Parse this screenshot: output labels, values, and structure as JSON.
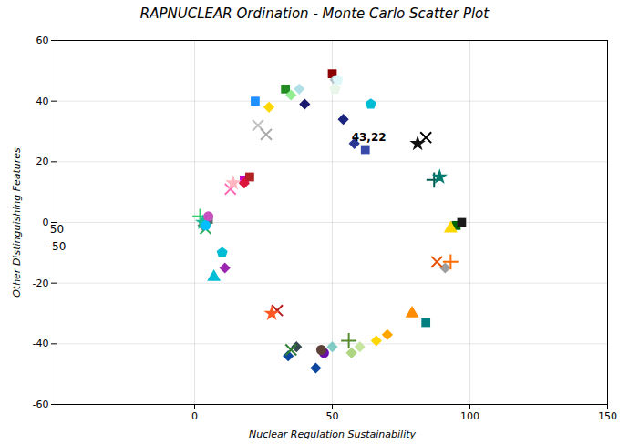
{
  "chart_data": {
    "type": "scatter",
    "title": "RAPNUCLEAR Ordination - Monte Carlo Scatter Plot",
    "xlabel": "Nuclear Regulation Sustainability",
    "ylabel": "Other Distinguishing Features",
    "xlim": [
      -50,
      150
    ],
    "ylim": [
      -60,
      60
    ],
    "xticks": [
      0,
      50,
      100,
      150
    ],
    "yticks": [
      -60,
      -40,
      -20,
      0,
      20,
      40,
      60
    ],
    "grid": true,
    "annotations": [
      {
        "text": "43,22",
        "x": 57,
        "y": 27
      },
      {
        "text": "50",
        "x": -50,
        "y": 0
      },
      {
        "text": "-50",
        "x": -50,
        "y": -3
      }
    ],
    "series": [
      {
        "marker": "square",
        "x": [
          5,
          18,
          20,
          22,
          33,
          50,
          62,
          95,
          97,
          84
        ],
        "values": [
          1,
          14,
          15,
          40,
          44,
          49,
          24,
          -1,
          0,
          -33
        ],
        "colors": [
          "#5a6a6e",
          "#cc00cc",
          "#b22222",
          "#1e90ff",
          "#228b22",
          "#8b0000",
          "#3949ab",
          "#006400",
          "#1a1a1a",
          "#008080"
        ]
      },
      {
        "marker": "diamond",
        "x": [
          3,
          18,
          27,
          35,
          38,
          40,
          51,
          54,
          58,
          91,
          70,
          66,
          60,
          57,
          50,
          44,
          37,
          34,
          11
        ],
        "values": [
          -1,
          13,
          38,
          42,
          44,
          39,
          47,
          34,
          26,
          -15,
          -37,
          -39,
          -41,
          -43,
          -41,
          -48,
          -41,
          -44,
          -15
        ],
        "colors": [
          "#6e8080",
          "#dc143c",
          "#ffd700",
          "#90ee90",
          "#b0e0e6",
          "#191970",
          "#b0bec5",
          "#1a237e",
          "#283593",
          "#9e9e9e",
          "#ffa500",
          "#ffd700",
          "#c6e6a0",
          "#aed581",
          "#80cbc4",
          "#0d47a1",
          "#37474f",
          "#0d47a1",
          "#9c27b0"
        ]
      },
      {
        "marker": "plus",
        "x": [
          2,
          87,
          93,
          56
        ],
        "values": [
          2,
          14,
          -13,
          -39
        ],
        "colors": [
          "#2ecc71",
          "#005a52",
          "#ff6d00",
          "#558b2f"
        ]
      },
      {
        "marker": "times",
        "x": [
          4,
          13,
          23,
          26,
          84,
          88,
          35,
          30
        ],
        "values": [
          -2,
          11,
          32,
          29,
          28,
          -13,
          -42,
          -29
        ],
        "colors": [
          "#27ae60",
          "#ff69b4",
          "#c0c0c0",
          "#a8a8a8",
          "#000000",
          "#e65100",
          "#2e7d32",
          "#b71c1c"
        ]
      },
      {
        "marker": "star",
        "x": [
          3,
          14,
          81,
          89,
          28
        ],
        "values": [
          0,
          13,
          26,
          15,
          -30
        ],
        "colors": [
          "#1abc9c",
          "#ffb6c1",
          "#111111",
          "#007b6e",
          "#ff5722"
        ]
      },
      {
        "marker": "circle",
        "x": [
          5,
          4,
          47,
          46
        ],
        "values": [
          2,
          -1,
          -43,
          -42
        ],
        "colors": [
          "#c850c0",
          "#00bfff",
          "#6a0dad",
          "#5d4037"
        ]
      },
      {
        "marker": "pentagon",
        "x": [
          51,
          52,
          64,
          10
        ],
        "values": [
          44,
          47,
          39,
          -10
        ],
        "colors": [
          "#e8f5e9",
          "#e0f7fa",
          "#00bcd4",
          "#00bcd4"
        ]
      },
      {
        "marker": "triangle",
        "x": [
          93,
          79,
          7
        ],
        "values": [
          -2,
          -30,
          -18
        ],
        "colors": [
          "#ffd700",
          "#ff8c00",
          "#00bcd4"
        ]
      }
    ]
  }
}
